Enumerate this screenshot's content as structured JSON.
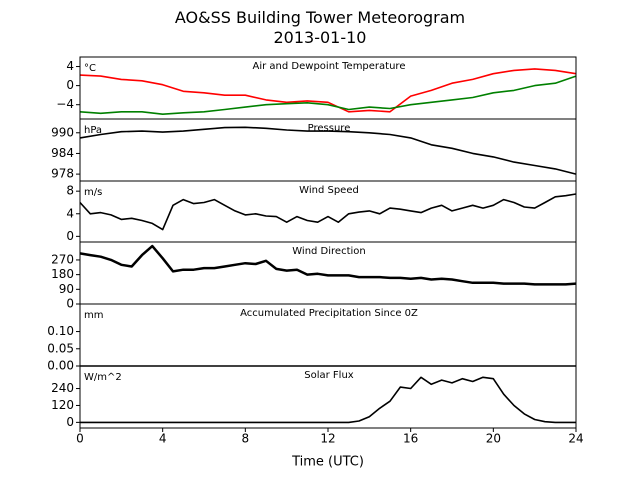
{
  "title": "AO&SS Building Tower Meteorogram",
  "subtitle": "2013-01-10",
  "colors": {
    "temperature": "#ff0000",
    "dewpoint": "#008000",
    "line": "#000000"
  },
  "chart_data": {
    "type": "line",
    "title": "AO&SS Building Tower Meteorogram",
    "subtitle": "2013-01-10",
    "xlabel": "Time (UTC)",
    "xlim": [
      0,
      24
    ],
    "xticks": [
      "0",
      "4",
      "8",
      "12",
      "16",
      "20",
      "24"
    ],
    "grid": false,
    "panels": [
      {
        "title": "Air and Dewpoint Temperature",
        "unit": "°C",
        "ylim": [
          -7,
          6
        ],
        "yticks": [
          "4",
          "0",
          "−4"
        ],
        "series": [
          {
            "key": "temperature",
            "x": [
              0,
              1,
              2,
              3,
              4,
              5,
              6,
              7,
              8,
              9,
              10,
              11,
              12,
              13,
              14,
              15,
              16,
              17,
              18,
              19,
              20,
              21,
              22,
              23,
              24
            ],
            "y": [
              2.2,
              2.0,
              1.3,
              1.0,
              0.2,
              -1.2,
              -1.5,
              -2.0,
              -2.0,
              -3.0,
              -3.5,
              -3.2,
              -3.5,
              -5.5,
              -5.2,
              -5.5,
              -2.2,
              -1.0,
              0.5,
              1.3,
              2.5,
              3.2,
              3.5,
              3.2,
              2.5
            ]
          },
          {
            "key": "dewpoint",
            "x": [
              0,
              1,
              2,
              3,
              4,
              5,
              6,
              7,
              8,
              9,
              10,
              11,
              12,
              13,
              14,
              15,
              16,
              17,
              18,
              19,
              20,
              21,
              22,
              23,
              24
            ],
            "y": [
              -5.5,
              -5.8,
              -5.5,
              -5.5,
              -6.0,
              -5.7,
              -5.5,
              -5.0,
              -4.5,
              -4.0,
              -3.8,
              -3.6,
              -4.0,
              -5.0,
              -4.5,
              -4.8,
              -4.0,
              -3.5,
              -3.0,
              -2.5,
              -1.5,
              -1.0,
              0.0,
              0.5,
              2.0
            ]
          }
        ]
      },
      {
        "title": "Pressure",
        "unit": "hPa",
        "ylim": [
          976,
          994
        ],
        "yticks": [
          "990",
          "984",
          "978"
        ],
        "series": [
          {
            "key": "line",
            "x": [
              0,
              1,
              2,
              3,
              4,
              5,
              6,
              7,
              8,
              9,
              10,
              11,
              12,
              13,
              14,
              15,
              16,
              17,
              18,
              19,
              20,
              21,
              22,
              23,
              24
            ],
            "y": [
              988.5,
              989.5,
              990.3,
              990.5,
              990.2,
              990.5,
              991.0,
              991.5,
              991.6,
              991.3,
              990.8,
              990.5,
              990.5,
              990.3,
              990.0,
              989.5,
              988.5,
              986.5,
              985.5,
              984.0,
              983.0,
              981.5,
              980.5,
              979.5,
              978.0
            ]
          }
        ]
      },
      {
        "title": "Wind Speed",
        "unit": "m/s",
        "ylim": [
          -1,
          9.8
        ],
        "yticks": [
          "8",
          "4",
          "0"
        ],
        "series": [
          {
            "key": "line",
            "x": [
              0,
              0.5,
              1,
              1.5,
              2,
              2.5,
              3,
              3.5,
              4,
              4.5,
              5,
              5.5,
              6,
              6.5,
              7,
              7.5,
              8,
              8.5,
              9,
              9.5,
              10,
              10.5,
              11,
              11.5,
              12,
              12.5,
              13,
              13.5,
              14,
              14.5,
              15,
              15.5,
              16,
              16.5,
              17,
              17.5,
              18,
              18.5,
              19,
              19.5,
              20,
              20.5,
              21,
              21.5,
              22,
              22.5,
              23,
              23.5,
              24
            ],
            "y": [
              6.0,
              4.0,
              4.2,
              3.8,
              3.0,
              3.2,
              2.8,
              2.3,
              1.2,
              5.5,
              6.5,
              5.8,
              6.0,
              6.5,
              5.5,
              4.5,
              3.8,
              4.0,
              3.6,
              3.5,
              2.5,
              3.5,
              2.8,
              2.5,
              3.5,
              2.5,
              4.0,
              4.3,
              4.5,
              4.0,
              5.0,
              4.8,
              4.5,
              4.2,
              5.0,
              5.5,
              4.5,
              5.0,
              5.5,
              5.0,
              5.5,
              6.5,
              6.0,
              5.2,
              5.0,
              6.0,
              7.0,
              7.2,
              7.5
            ]
          }
        ]
      },
      {
        "title": "Wind Direction",
        "unit": "",
        "ylim": [
          0,
          380
        ],
        "yticks": [
          "270",
          "180",
          "90",
          "0"
        ],
        "series": [
          {
            "key": "line",
            "x": [
              0,
              0.5,
              1,
              1.5,
              2,
              2.5,
              3,
              3.5,
              4,
              4.5,
              5,
              5.5,
              6,
              6.5,
              7,
              7.5,
              8,
              8.5,
              9,
              9.5,
              10,
              10.5,
              11,
              11.5,
              12,
              12.5,
              13,
              13.5,
              14,
              14.5,
              15,
              15.5,
              16,
              16.5,
              17,
              17.5,
              18,
              18.5,
              19,
              19.5,
              20,
              20.5,
              21,
              21.5,
              22,
              22.5,
              23,
              23.5,
              24
            ],
            "y": [
              310,
              300,
              290,
              270,
              240,
              230,
              300,
              355,
              280,
              200,
              210,
              210,
              220,
              220,
              230,
              240,
              250,
              245,
              265,
              215,
              205,
              210,
              180,
              185,
              175,
              175,
              175,
              165,
              165,
              165,
              160,
              160,
              155,
              160,
              150,
              155,
              150,
              140,
              130,
              130,
              130,
              125,
              125,
              125,
              120,
              120,
              120,
              120,
              125
            ]
          }
        ]
      },
      {
        "title": "Accumulated Precipitation Since 0Z",
        "unit": "mm",
        "ylim": [
          0,
          0.18
        ],
        "yticks": [
          "0.10",
          "0.05",
          "0.00"
        ],
        "series": [
          {
            "key": "line",
            "x": [
              0,
              24
            ],
            "y": [
              0,
              0
            ]
          }
        ]
      },
      {
        "title": "Solar Flux",
        "unit": "W/m^2",
        "ylim": [
          -40,
          400
        ],
        "yticks": [
          "240",
          "120",
          "0"
        ],
        "series": [
          {
            "key": "line",
            "x": [
              0,
              13,
              13.5,
              14,
              14.5,
              15,
              15.5,
              16,
              16.5,
              17,
              17.5,
              18,
              18.5,
              19,
              19.5,
              20,
              20.5,
              21,
              21.5,
              22,
              22.5,
              23,
              24
            ],
            "y": [
              0,
              0,
              10,
              40,
              100,
              150,
              250,
              240,
              320,
              270,
              300,
              280,
              310,
              290,
              320,
              310,
              200,
              120,
              60,
              20,
              5,
              0,
              0
            ]
          }
        ]
      }
    ]
  }
}
